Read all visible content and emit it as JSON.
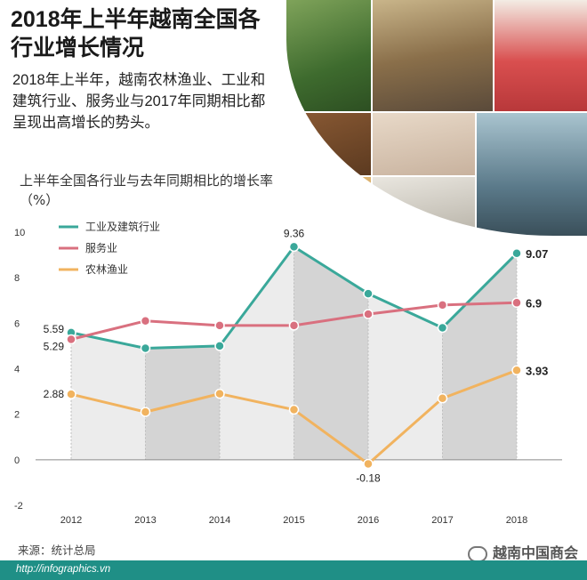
{
  "header": {
    "title": "2018年上半年越南全国各行业增长情况",
    "intro": "2018年上半年，越南农林渔业、工业和建筑行业、服务业与2017年同期相比都呈现出高增长的势头。"
  },
  "chart_data": {
    "type": "line",
    "title": "上半年全国各行业与去年同期相比的增长率（%）",
    "x": [
      "2012",
      "2013",
      "2014",
      "2015",
      "2016",
      "2017",
      "2018"
    ],
    "ylim": [
      -2,
      10
    ],
    "yticks": [
      "10",
      "8",
      "6",
      "4",
      "2",
      "0",
      "-2"
    ],
    "series": [
      {
        "name": "工业及建筑行业",
        "color": "#3aa89a",
        "values": [
          5.59,
          4.9,
          5.0,
          9.36,
          7.3,
          5.8,
          9.07
        ]
      },
      {
        "name": "服务业",
        "color": "#d9707f",
        "values": [
          5.29,
          6.1,
          5.9,
          5.9,
          6.4,
          6.8,
          6.9
        ]
      },
      {
        "name": "农林渔业",
        "color": "#f1b35f",
        "values": [
          2.88,
          2.1,
          2.9,
          2.2,
          -0.18,
          2.7,
          3.93
        ]
      }
    ],
    "data_labels": [
      {
        "series": 0,
        "index": 0,
        "text": "5.59"
      },
      {
        "series": 1,
        "index": 0,
        "text": "5.29"
      },
      {
        "series": 2,
        "index": 0,
        "text": "2.88"
      },
      {
        "series": 0,
        "index": 3,
        "text": "9.36"
      },
      {
        "series": 2,
        "index": 4,
        "text": "-0.18"
      },
      {
        "series": 0,
        "index": 6,
        "text": "9.07"
      },
      {
        "series": 1,
        "index": 6,
        "text": "6.9"
      },
      {
        "series": 2,
        "index": 6,
        "text": "3.93"
      }
    ],
    "legend_position": "top-left"
  },
  "footer": {
    "source": "来源：统计总局",
    "url": "http://infographics.vn",
    "watermark": "越南中国商会"
  }
}
